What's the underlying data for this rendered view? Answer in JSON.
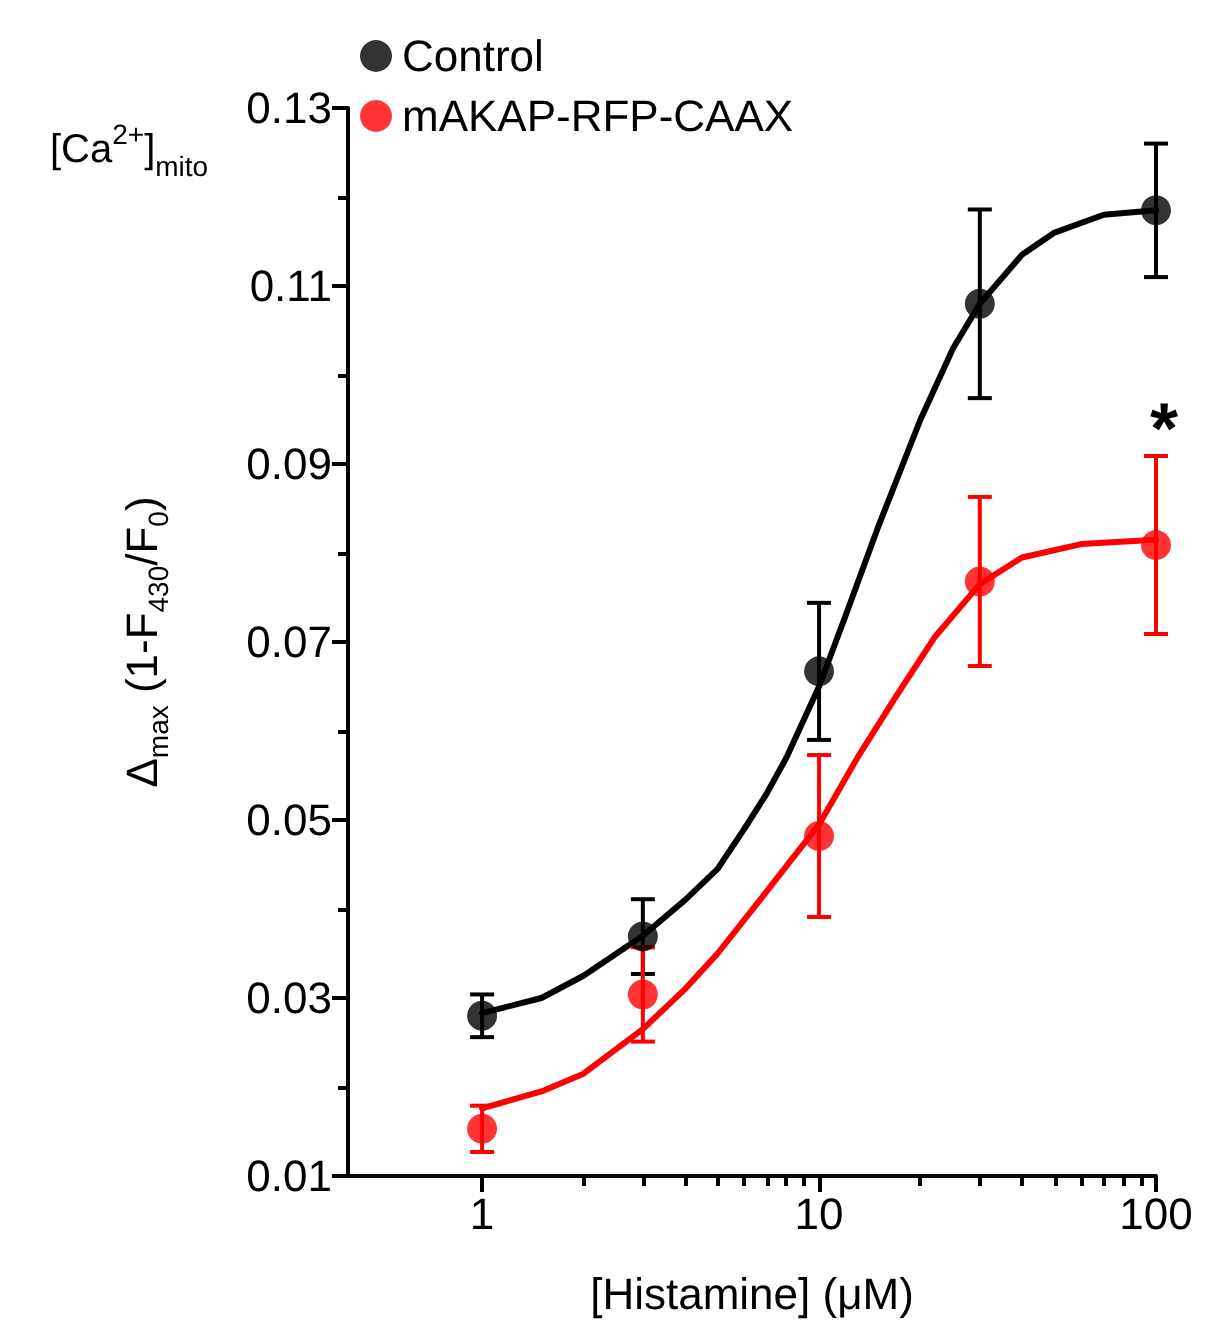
{
  "chart_data": {
    "type": "scatter",
    "xlabel": "[Histamine] (μM)",
    "ylabel": "Δ$_{max}$ (1-F$_{430}$/F$_{0}$)",
    "annotations": [
      "[Ca$^{2+}$]$_{mito}$",
      "*"
    ],
    "log": "x",
    "marker": "circle",
    "legend": "top left",
    "grid": false,
    "xlim": [
      0.4,
      100
    ],
    "xticks": [
      1,
      {
        "value": 2,
        "label": null
      },
      {
        "value": 3,
        "label": null
      },
      {
        "value": 4,
        "label": null
      },
      {
        "value": 5,
        "label": null
      },
      {
        "value": 6,
        "label": null
      },
      {
        "value": 7,
        "label": null
      },
      {
        "value": 8,
        "label": null
      },
      {
        "value": 9,
        "label": null
      },
      10,
      {
        "value": 20,
        "label": null
      },
      {
        "value": 30,
        "label": null
      },
      {
        "value": 40,
        "label": null
      },
      {
        "value": 50,
        "label": null
      },
      {
        "value": 60,
        "label": null
      },
      {
        "value": 70,
        "label": null
      },
      {
        "value": 80,
        "label": null
      },
      {
        "value": 90,
        "label": null
      },
      100
    ],
    "ylim": [
      0.01,
      0.13
    ],
    "yticks": [
      0.01,
      {
        "value": 0.02,
        "label": null
      },
      0.03,
      {
        "value": 0.04,
        "label": null
      },
      0.05,
      {
        "value": 0.06,
        "label": null
      },
      0.07,
      {
        "value": 0.08,
        "label": null
      },
      0.09,
      {
        "value": 0.1,
        "label": null
      },
      0.11,
      {
        "value": 0.12,
        "label": null
      },
      0.13
    ],
    "series": [
      {
        "name": "Control",
        "color": "#000000",
        "x": [
          1,
          3,
          10,
          30,
          100
        ],
        "values": [
          0.028,
          0.0369,
          0.0667,
          0.108,
          0.1185
        ],
        "errors": [
          0.0024,
          0.0042,
          0.0077,
          0.0106,
          0.0075
        ]
      },
      {
        "name": "mAKAP-RFP-CAAX",
        "color": "#ff0000",
        "x": [
          1,
          3,
          10,
          30,
          100
        ],
        "values": [
          0.0153,
          0.0304,
          0.0482,
          0.0768,
          0.0809
        ],
        "errors": [
          0.0026,
          0.0053,
          0.0091,
          0.0095,
          0.01
        ]
      },
      {
        "type": "line",
        "marker": "none",
        "color": "#000000",
        "x": [
          1,
          1.5,
          2,
          3,
          4,
          5,
          6,
          7,
          8,
          10,
          12,
          15,
          20,
          25,
          30,
          40,
          50,
          70,
          100
        ],
        "values": [
          0.0283,
          0.03,
          0.0325,
          0.037,
          0.041,
          0.0445,
          0.049,
          0.053,
          0.057,
          0.065,
          0.073,
          0.083,
          0.095,
          0.103,
          0.108,
          0.1135,
          0.116,
          0.118,
          0.1185
        ]
      },
      {
        "type": "line",
        "marker": "none",
        "color": "#ff0000",
        "x": [
          1,
          1.5,
          2,
          3,
          4,
          5,
          7,
          10,
          13,
          17,
          22,
          30,
          40,
          60,
          100
        ],
        "values": [
          0.0176,
          0.0195,
          0.0215,
          0.0265,
          0.031,
          0.035,
          0.042,
          0.0495,
          0.057,
          0.064,
          0.0705,
          0.0765,
          0.0795,
          0.081,
          0.0815
        ]
      }
    ]
  }
}
